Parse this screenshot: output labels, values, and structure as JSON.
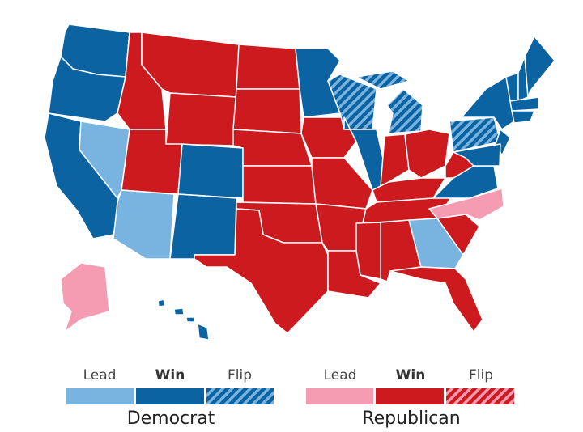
{
  "legend": {
    "democrat": {
      "lead": "Lead",
      "win": "Win",
      "flip": "Flip",
      "title": "Democrat"
    },
    "republican": {
      "lead": "Lead",
      "win": "Win",
      "flip": "Flip",
      "title": "Republican"
    }
  }
}
